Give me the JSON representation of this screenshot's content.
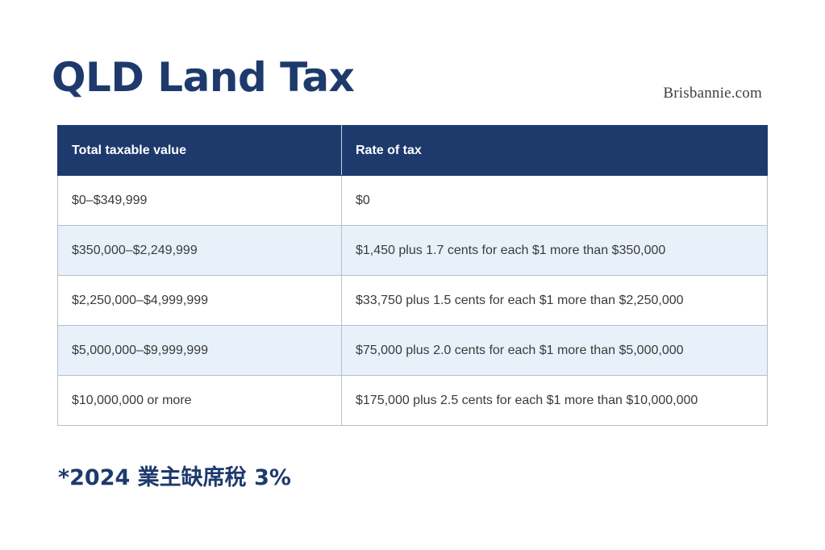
{
  "header": {
    "title": "QLD Land Tax",
    "site": "Brisbannie.com"
  },
  "table": {
    "columns": [
      "Total taxable value",
      "Rate of tax"
    ],
    "rows": [
      [
        "$0–$349,999",
        "$0"
      ],
      [
        "$350,000–$2,249,999",
        "$1,450 plus 1.7 cents for each $1 more than $350,000"
      ],
      [
        "$2,250,000–$4,999,999",
        "$33,750 plus 1.5 cents for each $1 more than $2,250,000"
      ],
      [
        "$5,000,000–$9,999,999",
        "$75,000 plus 2.0 cents for each $1 more than $5,000,000"
      ],
      [
        "$10,000,000 or more",
        "$175,000 plus 2.5 cents for each $1 more than $10,000,000"
      ]
    ]
  },
  "footnote": "*2024 業主缺席稅 3%",
  "colors": {
    "navy": "#1e3a6d",
    "row_alt": "#e8f1fa",
    "border": "#b9bec7"
  }
}
